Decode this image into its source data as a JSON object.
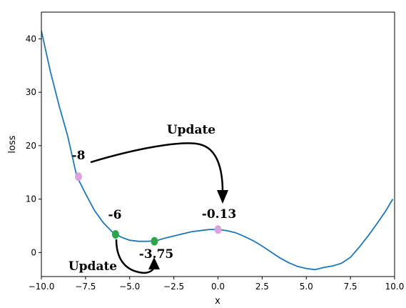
{
  "chart_data": {
    "type": "line",
    "title": "",
    "xlabel": "x",
    "ylabel": "loss",
    "xlim": [
      -10,
      10
    ],
    "ylim": [
      -4.5,
      45
    ],
    "xticks": [
      -10.0,
      -7.5,
      -5.0,
      -2.5,
      0.0,
      2.5,
      5.0,
      7.5,
      10.0
    ],
    "xtick_labels": [
      "−10.0",
      "−7.5",
      "−5.0",
      "−2.5",
      "0.0",
      "2.5",
      "5.0",
      "7.5",
      "10.0"
    ],
    "yticks": [
      0,
      10,
      20,
      30,
      40
    ],
    "ytick_labels": [
      "0",
      "10",
      "20",
      "30",
      "40"
    ],
    "grid": false,
    "line_color": "#1f77b4",
    "series": [
      {
        "x": [
          -10,
          -9.5,
          -9,
          -8.5,
          -8,
          -7.5,
          -7,
          -6.5,
          -6,
          -5.5,
          -5,
          -4.5,
          -4,
          -3.5,
          -3,
          -2.5,
          -2,
          -1.5,
          -1,
          -0.5,
          0,
          0.5,
          1,
          1.5,
          2,
          2.5,
          3,
          3.5,
          4,
          4.5,
          5,
          5.5,
          6,
          6.5,
          7,
          7.5,
          8,
          8.5,
          9,
          9.5,
          9.9
        ],
        "values": [
          41.5,
          34.0,
          27.5,
          21.7,
          14.3,
          11.0,
          7.9,
          5.6,
          3.9,
          2.9,
          2.3,
          2.1,
          2.1,
          2.2,
          2.7,
          3.1,
          3.5,
          3.9,
          4.1,
          4.3,
          4.3,
          4.1,
          3.7,
          3.0,
          2.2,
          1.2,
          0.1,
          -1.0,
          -1.9,
          -2.6,
          -3.0,
          -3.2,
          -2.8,
          -2.5,
          -2.0,
          -0.9,
          1.0,
          3.1,
          5.4,
          7.8,
          10.0
        ]
      }
    ],
    "points": [
      {
        "x": -7.9,
        "y": 14.2,
        "color": "#d9a4dd",
        "label": "-8"
      },
      {
        "x": 0.0,
        "y": 4.3,
        "color": "#d9a4dd",
        "label": "-0.13"
      },
      {
        "x": -5.8,
        "y": 3.4,
        "color": "#2ca54a",
        "label": "-6"
      },
      {
        "x": -3.6,
        "y": 2.1,
        "color": "#2ca54a",
        "label": "-3.75"
      }
    ],
    "annotations": [
      {
        "text": "Update"
      },
      {
        "text": "Update"
      }
    ]
  }
}
